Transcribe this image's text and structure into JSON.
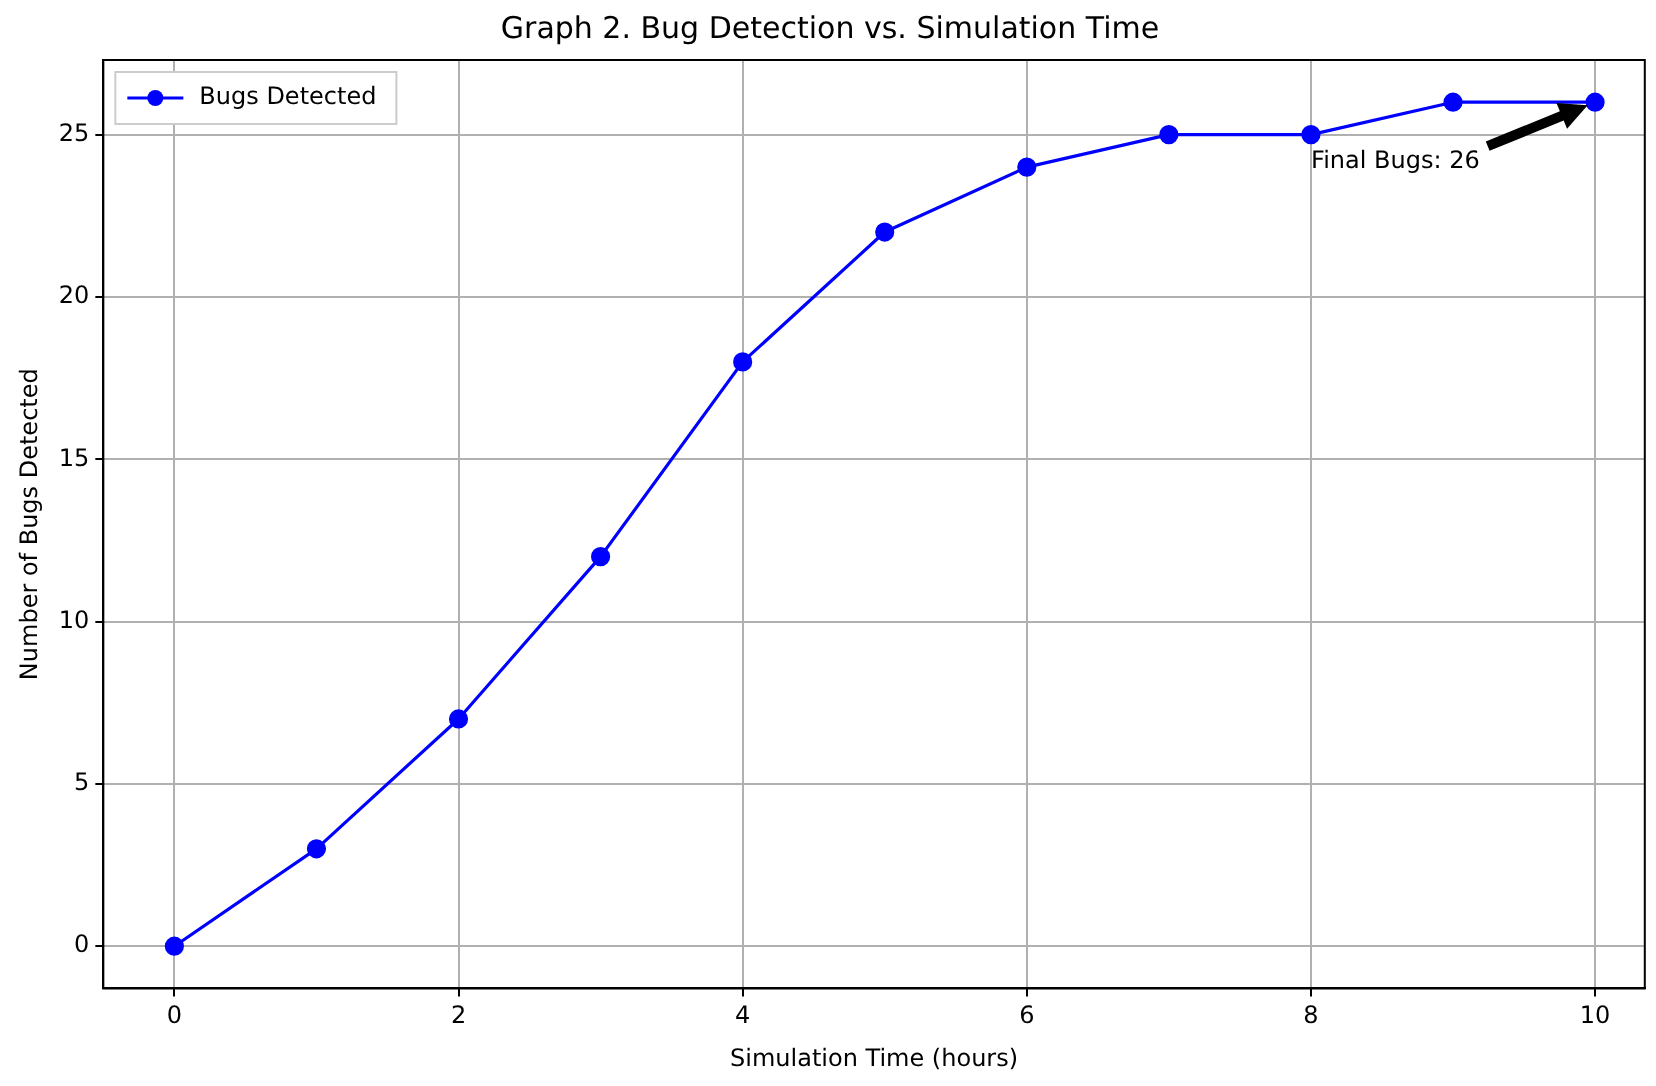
{
  "chart_data": {
    "type": "line",
    "title": "Graph 2. Bug Detection vs. Simulation Time",
    "xlabel": "Simulation Time (hours)",
    "ylabel": "Number of Bugs Detected",
    "x": [
      0,
      1,
      2,
      3,
      4,
      5,
      6,
      7,
      8,
      9,
      10
    ],
    "series": [
      {
        "name": "Bugs Detected",
        "color": "#0000ff",
        "values": [
          0,
          3,
          7,
          12,
          18,
          22,
          24,
          25,
          25,
          26,
          26
        ]
      }
    ],
    "xlim": [
      -0.5,
      10.35
    ],
    "xticks": [
      0,
      2,
      4,
      6,
      8,
      10
    ],
    "ylim": [
      -1.3,
      27.3
    ],
    "yticks": [
      0,
      5,
      10,
      15,
      20,
      25
    ],
    "grid": true,
    "legend": "top left",
    "marker": "circle",
    "line_style": "solid",
    "annotations": [
      "Final Bugs: 26"
    ]
  }
}
